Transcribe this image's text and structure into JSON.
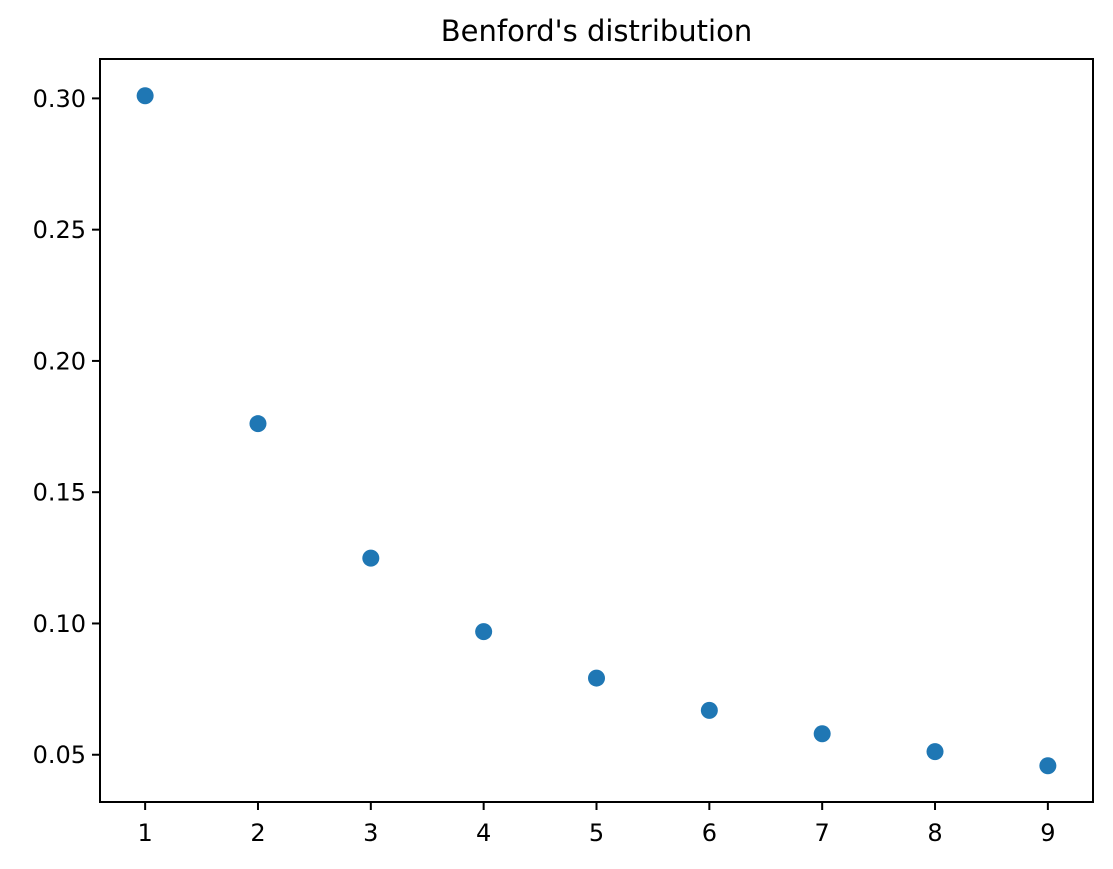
{
  "chart_data": {
    "type": "scatter",
    "title": "Benford's distribution",
    "xlabel": "",
    "ylabel": "",
    "x": [
      1,
      2,
      3,
      4,
      5,
      6,
      7,
      8,
      9
    ],
    "y": [
      0.301,
      0.1761,
      0.1249,
      0.0969,
      0.0792,
      0.0669,
      0.058,
      0.0512,
      0.0458
    ],
    "x_tick_labels": [
      "1",
      "2",
      "3",
      "4",
      "5",
      "6",
      "7",
      "8",
      "9"
    ],
    "y_ticks": [
      0.05,
      0.1,
      0.15,
      0.2,
      0.25,
      0.3
    ],
    "y_tick_labels": [
      "0.05",
      "0.10",
      "0.15",
      "0.20",
      "0.25",
      "0.30"
    ],
    "xlim": [
      0.6,
      9.4
    ],
    "ylim": [
      0.032,
      0.315
    ],
    "grid": false,
    "legend": null,
    "marker_color": "#1f77b4",
    "axis_color": "#000000",
    "text_color": "#000000"
  }
}
